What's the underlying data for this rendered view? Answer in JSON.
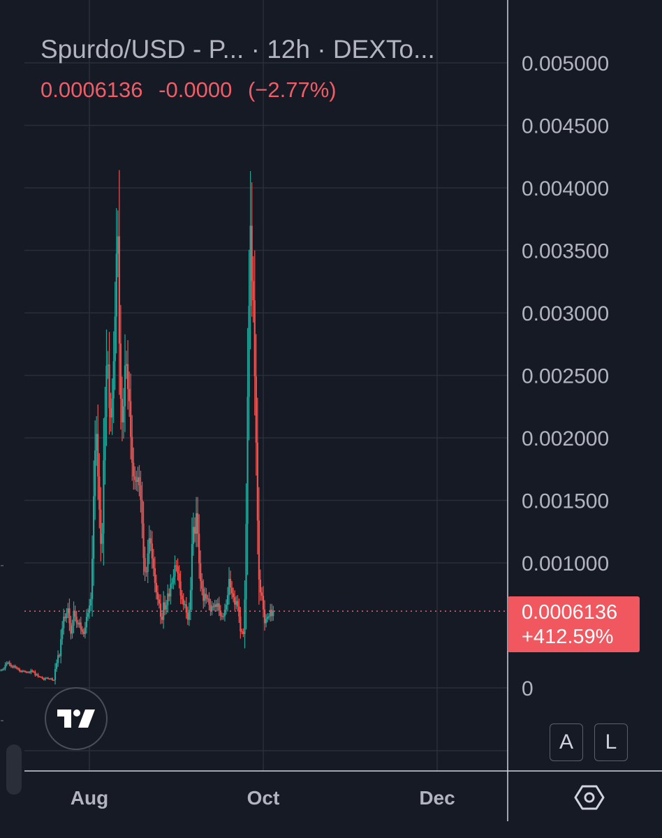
{
  "header": {
    "title": "Spurdo/USD - P...  · 12h · DEXTo...",
    "last_price": "0.0006136",
    "change": "-0.0000",
    "change_percent": "(−2.77%)"
  },
  "price_tag": {
    "price": "0.0006136",
    "change": "+412.59%"
  },
  "buttons": {
    "auto_label": "A",
    "log_label": "L"
  },
  "colors": {
    "background": "#161a25",
    "grid": "#2a2e39",
    "up": "#26a69a",
    "down": "#ef5350",
    "price_line": "#f0575f",
    "axis_text": "#b2b5be"
  },
  "chart_data": {
    "type": "candlestick",
    "interval": "12h",
    "ylim": [
      0,
      0.005
    ],
    "yticks": [
      0,
      0.001,
      0.0015,
      0.002,
      0.0025,
      0.003,
      0.0035,
      0.004,
      0.0045,
      0.005
    ],
    "ytick_labels": [
      "0",
      "0.001000",
      "0.001500",
      "0.002000",
      "0.002500",
      "0.003000",
      "0.003500",
      "0.004000",
      "0.004500",
      "0.005000"
    ],
    "x_labels": [
      "Aug",
      "Oct",
      "Dec"
    ],
    "last_price": 0.0006136,
    "x_start": "2023-07-01",
    "close": [
      0.000143,
      0.000147,
      0.000155,
      0.000185,
      0.000199,
      0.000203,
      0.000186,
      0.000173,
      0.000165,
      0.000174,
      0.000164,
      0.000156,
      0.000149,
      0.000135,
      0.000129,
      0.000136,
      0.000133,
      0.000128,
      0.000123,
      0.000127,
      0.000121,
      0.000139,
      0.000131,
      0.000126,
      0.000102,
      0.000108,
      9.1e-05,
      8.8e-05,
      8.5e-05,
      7.5e-05,
      6.5e-05,
      7.8e-05,
      8.1e-05,
      7.3e-05,
      7e-05,
      7.5e-05,
      6.3e-05,
      6.1e-05,
      0.000151,
      0.000198,
      0.000261,
      0.000254,
      0.00039,
      0.000477,
      0.000569,
      0.000557,
      0.000596,
      0.000636,
      0.000518,
      0.000434,
      0.000497,
      0.000614,
      0.00057,
      0.000518,
      0.000507,
      0.000523,
      0.000467,
      0.00045,
      0.000431,
      0.000484,
      0.000568,
      0.000598,
      0.000658,
      0.000711,
      0.001033,
      0.001533,
      0.001899,
      0.002032,
      0.001691,
      0.001426,
      0.001152,
      0.001233,
      0.00182,
      0.002166,
      0.002578,
      0.002587,
      0.002238,
      0.002163,
      0.002315,
      0.002613,
      0.00297,
      0.003473,
      0.003612,
      0.002754,
      0.002313,
      0.002124,
      0.002251,
      0.002578,
      0.002589,
      0.002391,
      0.002294,
      0.002008,
      0.001801,
      0.001691,
      0.001663,
      0.001648,
      0.001685,
      0.00162,
      0.001504,
      0.001315,
      0.001039,
      0.00093,
      0.000927,
      0.001075,
      0.001197,
      0.001155,
      0.001036,
      0.000958,
      0.000839,
      0.000764,
      0.000707,
      0.000674,
      0.000569,
      0.000544,
      0.000684,
      0.000626,
      0.000661,
      0.000755,
      0.000731,
      0.00083,
      0.00084,
      0.000891,
      0.00098,
      0.000972,
      0.000916,
      0.000852,
      0.000739,
      0.000709,
      0.000664,
      0.000669,
      0.000601,
      0.000545,
      0.000623,
      0.000783,
      0.001151,
      0.001288,
      0.001233,
      0.001397,
      0.001233,
      0.000996,
      0.000855,
      0.000793,
      0.000696,
      0.000752,
      0.000715,
      0.000714,
      0.000664,
      0.000617,
      0.000652,
      0.000646,
      0.000668,
      0.000648,
      0.000676,
      0.000619,
      0.000577,
      0.000569,
      0.000573,
      0.000625,
      0.000664,
      0.000742,
      0.000872,
      0.000802,
      0.000757,
      0.000725,
      0.000666,
      0.000695,
      0.000652,
      0.000571,
      0.000453,
      0.000449,
      0.00043,
      0.000707,
      0.001311,
      0.002328,
      0.003055,
      0.003697,
      0.003254,
      0.003101,
      0.002492,
      0.001962,
      0.001339,
      0.000866,
      0.000763,
      0.000736,
      0.000627,
      0.000517,
      0.000552,
      0.000568,
      0.000572,
      0.000624,
      0.000574,
      0.000614
    ]
  }
}
